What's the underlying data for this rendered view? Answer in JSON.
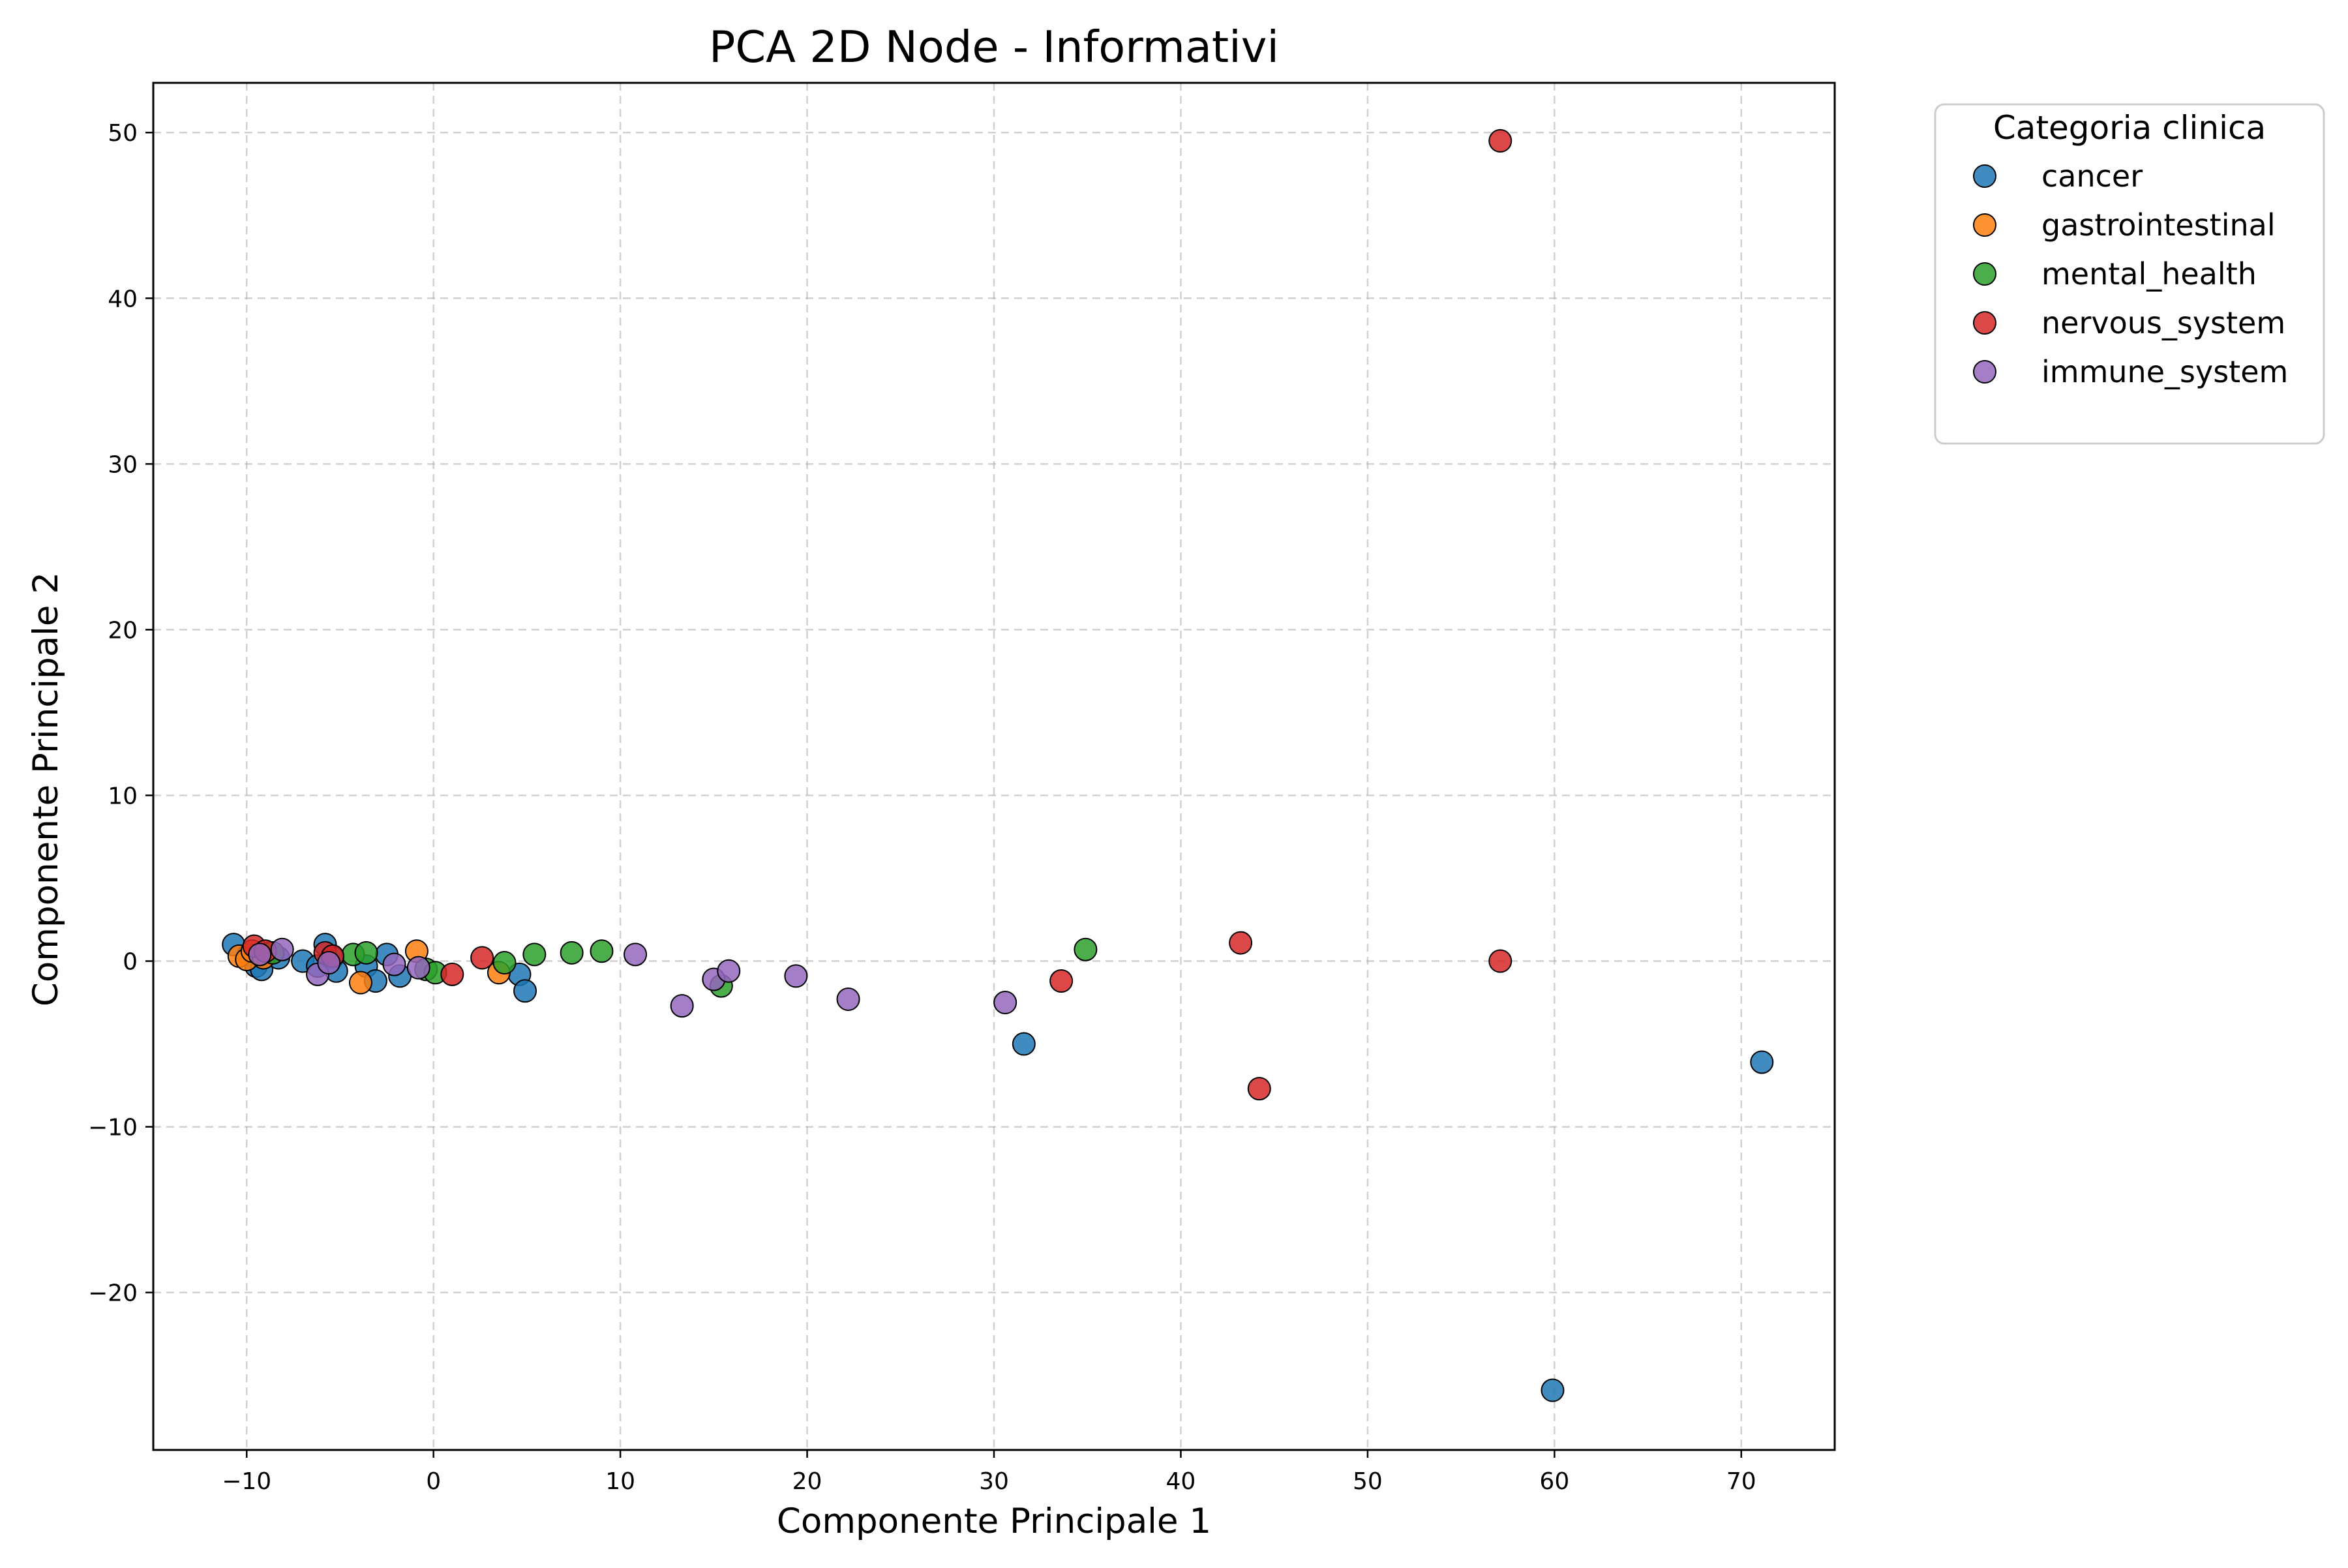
{
  "chart_data": {
    "type": "scatter",
    "title": "PCA 2D Node -  Informativi",
    "xlabel": "Componente Principale 1",
    "ylabel": "Componente Principale 2",
    "xlim": [
      -15,
      75
    ],
    "ylim": [
      -29.5,
      53
    ],
    "xticks": [
      -10,
      0,
      10,
      20,
      30,
      40,
      50,
      60,
      70
    ],
    "yticks": [
      -20,
      -10,
      0,
      10,
      20,
      30,
      40,
      50
    ],
    "grid": true,
    "legend": {
      "title": "Categoria clinica",
      "placement": "outside-top-right"
    },
    "series": [
      {
        "name": "cancer",
        "color": "#1f77b4",
        "points": [
          [
            -10.7,
            1.0
          ],
          [
            -9.9,
            0.4
          ],
          [
            -9.5,
            -0.3
          ],
          [
            -9.2,
            -0.5
          ],
          [
            -8.8,
            0.5
          ],
          [
            -8.3,
            0.2
          ],
          [
            -7.0,
            0.0
          ],
          [
            -6.2,
            -0.3
          ],
          [
            -5.8,
            1.0
          ],
          [
            -5.4,
            0.2
          ],
          [
            -5.2,
            -0.6
          ],
          [
            -3.6,
            -0.3
          ],
          [
            -3.1,
            -1.2
          ],
          [
            -2.5,
            0.4
          ],
          [
            -1.8,
            -0.9
          ],
          [
            4.6,
            -0.8
          ],
          [
            4.9,
            -1.8
          ],
          [
            31.6,
            -5.0
          ],
          [
            59.9,
            -25.9
          ],
          [
            71.1,
            -6.1
          ]
        ]
      },
      {
        "name": "gastrointestinal",
        "color": "#ff7f0e",
        "points": [
          [
            -10.4,
            0.3
          ],
          [
            -10.0,
            0.1
          ],
          [
            -9.7,
            0.6
          ],
          [
            -9.1,
            0.2
          ],
          [
            -3.9,
            -1.3
          ],
          [
            -0.9,
            0.6
          ],
          [
            3.5,
            -0.7
          ]
        ]
      },
      {
        "name": "mental_health",
        "color": "#2ca02c",
        "points": [
          [
            -8.6,
            0.5
          ],
          [
            -4.3,
            0.4
          ],
          [
            -3.6,
            0.5
          ],
          [
            -0.4,
            -0.5
          ],
          [
            0.1,
            -0.7
          ],
          [
            3.8,
            -0.1
          ],
          [
            5.4,
            0.4
          ],
          [
            7.4,
            0.5
          ],
          [
            9.0,
            0.6
          ],
          [
            15.4,
            -1.5
          ],
          [
            34.9,
            0.7
          ]
        ]
      },
      {
        "name": "nervous_system",
        "color": "#d62728",
        "points": [
          [
            -9.6,
            0.9
          ],
          [
            -9.0,
            0.6
          ],
          [
            -5.8,
            0.5
          ],
          [
            -5.4,
            0.3
          ],
          [
            1.0,
            -0.8
          ],
          [
            2.6,
            0.2
          ],
          [
            33.6,
            -1.2
          ],
          [
            43.2,
            1.1
          ],
          [
            44.2,
            -7.7
          ],
          [
            57.1,
            0.0
          ],
          [
            57.1,
            49.5
          ]
        ]
      },
      {
        "name": "immune_system",
        "color": "#9467bd",
        "points": [
          [
            -9.3,
            0.4
          ],
          [
            -8.1,
            0.7
          ],
          [
            -6.2,
            -0.8
          ],
          [
            -5.6,
            -0.1
          ],
          [
            -2.1,
            -0.2
          ],
          [
            -0.8,
            -0.4
          ],
          [
            10.8,
            0.4
          ],
          [
            13.3,
            -2.7
          ],
          [
            15.0,
            -1.1
          ],
          [
            15.8,
            -0.6
          ],
          [
            19.4,
            -0.9
          ],
          [
            22.2,
            -2.3
          ],
          [
            30.6,
            -2.5
          ]
        ]
      }
    ]
  }
}
